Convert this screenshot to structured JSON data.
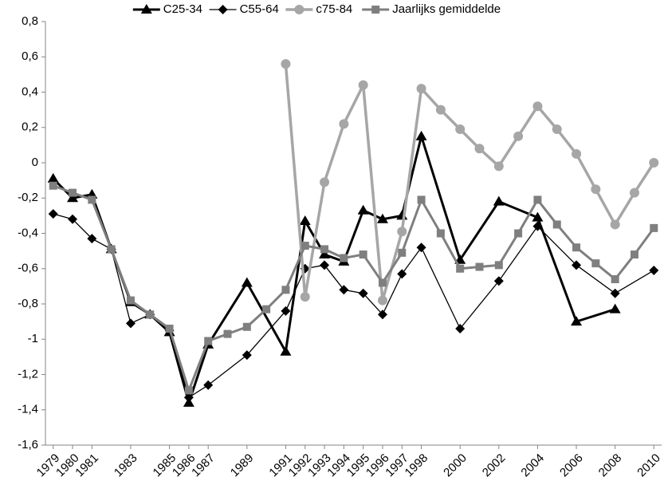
{
  "chart_data": {
    "type": "line",
    "xlim": [
      1978.6,
      2010.4
    ],
    "xticks": [
      1979,
      1980,
      1981,
      1983,
      1985,
      1986,
      1987,
      1989,
      1991,
      1992,
      1993,
      1994,
      1995,
      1996,
      1997,
      1998,
      2000,
      2002,
      2004,
      2006,
      2008,
      2010
    ],
    "ylim": [
      -1.6,
      0.8
    ],
    "yticks": [
      {
        "value": -1.6,
        "label": "-1,6"
      },
      {
        "value": -1.4,
        "label": "-1,4"
      },
      {
        "value": -1.2,
        "label": "-1,2"
      },
      {
        "value": -1,
        "label": "-1"
      },
      {
        "value": -0.8,
        "label": "-0,8"
      },
      {
        "value": -0.6,
        "label": "-0,6"
      },
      {
        "value": -0.4,
        "label": "-0,4"
      },
      {
        "value": -0.2,
        "label": "-0,2"
      },
      0,
      {
        "value": 0.2,
        "label": "0,2"
      },
      {
        "value": 0.4,
        "label": "0,4"
      },
      {
        "value": 0.6,
        "label": "0,6"
      },
      {
        "value": 0.8,
        "label": "0,8"
      }
    ],
    "legend": "top",
    "series": [
      {
        "name": "C25-34",
        "color": "#000000",
        "width": 3,
        "marker": "triangle",
        "x": [
          1979,
          1980,
          1981,
          1982,
          1983,
          1984,
          1985,
          1986,
          1987,
          1989,
          1991,
          1992,
          1993,
          1994,
          1995,
          1996,
          1997,
          1998,
          2000,
          2002,
          2004,
          2006,
          2008
        ],
        "values": [
          -0.09,
          -0.2,
          -0.18,
          -0.49,
          -0.79,
          -0.86,
          -0.96,
          -1.36,
          -1.03,
          -0.68,
          -1.07,
          -0.33,
          -0.52,
          -0.56,
          -0.27,
          -0.32,
          -0.3,
          0.15,
          -0.55,
          -0.22,
          -0.31,
          -0.9,
          -0.83
        ]
      },
      {
        "name": "C55-64",
        "color": "#000000",
        "width": 1.3,
        "marker": "diamond",
        "x": [
          1979,
          1980,
          1981,
          1982,
          1983,
          1984,
          1985,
          1986,
          1987,
          1989,
          1991,
          1992,
          1993,
          1994,
          1995,
          1996,
          1997,
          1998,
          2000,
          2002,
          2004,
          2006,
          2008,
          2010
        ],
        "values": [
          -0.29,
          -0.32,
          -0.43,
          -0.49,
          -0.91,
          -0.86,
          -0.95,
          -1.33,
          -1.26,
          -1.09,
          -0.84,
          -0.6,
          -0.58,
          -0.72,
          -0.74,
          -0.86,
          -0.63,
          -0.48,
          -0.94,
          -0.67,
          -0.36,
          -0.58,
          -0.74,
          -0.61
        ]
      },
      {
        "name": "c75-84",
        "color": "#a6a6a6",
        "width": 3.5,
        "marker": "circle",
        "x": [
          1991,
          1992,
          1993,
          1994,
          1995,
          1996,
          1997,
          1998,
          1999,
          2000,
          2001,
          2002,
          2003,
          2004,
          2005,
          2006,
          2007,
          2008,
          2009,
          2010
        ],
        "values": [
          0.56,
          -0.76,
          -0.11,
          0.22,
          0.44,
          -0.78,
          -0.39,
          0.42,
          0.3,
          0.19,
          0.08,
          -0.02,
          0.15,
          0.32,
          0.19,
          0.05,
          -0.15,
          -0.35,
          -0.17,
          0
        ]
      },
      {
        "name": "Jaarlijks gemiddelde",
        "color": "#7f7f7f",
        "width": 3,
        "marker": "square",
        "x": [
          1979,
          1980,
          1981,
          1982,
          1983,
          1984,
          1985,
          1986,
          1987,
          1988,
          1989,
          1990,
          1991,
          1992,
          1993,
          1994,
          1995,
          1996,
          1997,
          1998,
          1999,
          2000,
          2001,
          2002,
          2003,
          2004,
          2005,
          2006,
          2007,
          2008,
          2009,
          2010
        ],
        "values": [
          -0.13,
          -0.17,
          -0.21,
          -0.49,
          -0.78,
          -0.86,
          -0.94,
          -1.29,
          -1.01,
          -0.97,
          -0.93,
          -0.83,
          -0.72,
          -0.47,
          -0.49,
          -0.54,
          -0.52,
          -0.68,
          -0.51,
          -0.21,
          -0.4,
          -0.6,
          -0.59,
          -0.58,
          -0.4,
          -0.21,
          -0.35,
          -0.48,
          -0.57,
          -0.66,
          -0.52,
          -0.37
        ]
      }
    ]
  }
}
